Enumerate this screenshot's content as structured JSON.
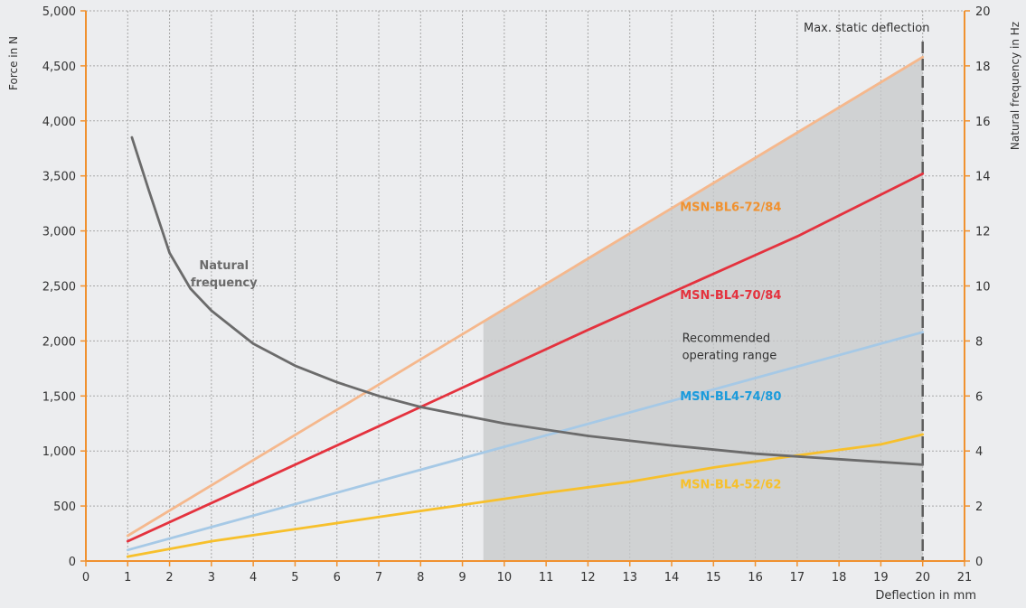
{
  "chart_data": {
    "type": "line",
    "title": "",
    "xlabel": "Deflection in mm",
    "ylabel": "Force in N",
    "y2label": "Natural frequency in Hz",
    "xlim": [
      0,
      21
    ],
    "ylim": [
      0,
      5000
    ],
    "y2lim": [
      0,
      20
    ],
    "x_ticks": [
      0,
      1,
      2,
      3,
      4,
      5,
      6,
      7,
      8,
      9,
      10,
      11,
      12,
      13,
      14,
      15,
      16,
      17,
      18,
      19,
      20,
      21
    ],
    "y_ticks": [
      0,
      500,
      1000,
      1500,
      2000,
      2500,
      3000,
      3500,
      4000,
      4500,
      5000
    ],
    "y_tick_labels": [
      "0",
      "500",
      "1,000",
      "1,500",
      "2,000",
      "2,500",
      "3,000",
      "3,500",
      "4,000",
      "4,500",
      "5,000"
    ],
    "y2_ticks": [
      0,
      2,
      4,
      6,
      8,
      10,
      12,
      14,
      16,
      18,
      20
    ],
    "y2_tick_labels": [
      "0",
      "2",
      "4",
      "6",
      "8",
      "10",
      "12",
      "14",
      "16",
      "18",
      "20"
    ],
    "grid": true,
    "region": {
      "name": "Recommended operating range",
      "x_start": 9.5,
      "x_end": 20,
      "bounded_by_series": "MSN-BL6-72/84"
    },
    "max_line": {
      "label": "Max. static deflection",
      "x": 20
    },
    "series": [
      {
        "name": "MSN-BL6-72/84",
        "axis": "left",
        "color": "#f5b88d",
        "label_color": "#f0912f",
        "x": [
          1,
          20
        ],
        "y": [
          230,
          4580
        ],
        "label": {
          "x": 14.2,
          "y": 3180
        }
      },
      {
        "name": "MSN-BL4-70/84",
        "axis": "left",
        "color": "#e4323e",
        "label_color": "#e4323e",
        "x": [
          1,
          4,
          8,
          12,
          16,
          17,
          20
        ],
        "y": [
          180,
          700,
          1400,
          2100,
          2780,
          2950,
          3520
        ],
        "label": {
          "x": 14.2,
          "y": 2380
        }
      },
      {
        "name": "MSN-BL4-74/80",
        "axis": "left",
        "color": "#a6c9e6",
        "label_color": "#1c9bdb",
        "x": [
          1,
          20
        ],
        "y": [
          100,
          2080
        ],
        "label": {
          "x": 14.2,
          "y": 1460
        }
      },
      {
        "name": "MSN-BL4-52/62",
        "axis": "left",
        "color": "#f7c02c",
        "label_color": "#f7c02c",
        "x": [
          1,
          3,
          5,
          7,
          9,
          11,
          13,
          15,
          17,
          19,
          20
        ],
        "y": [
          40,
          180,
          290,
          400,
          510,
          620,
          720,
          850,
          960,
          1060,
          1150
        ],
        "label": {
          "x": 14.2,
          "y": 660
        }
      },
      {
        "name": "Natural frequency",
        "axis": "right",
        "color": "#6b6b6b",
        "label_color": "#6b6b6b",
        "label_lines": [
          "Natural",
          "frequency"
        ],
        "x": [
          1.1,
          1.5,
          2,
          2.5,
          3,
          4,
          5,
          6,
          7,
          8,
          10,
          12,
          14,
          16,
          18,
          20
        ],
        "y": [
          15.4,
          13.5,
          11.2,
          9.9,
          9.1,
          7.9,
          7.1,
          6.5,
          6.0,
          5.6,
          5.0,
          4.55,
          4.2,
          3.9,
          3.7,
          3.5
        ],
        "label": {
          "x": 3.3,
          "y": 2650
        }
      }
    ]
  }
}
